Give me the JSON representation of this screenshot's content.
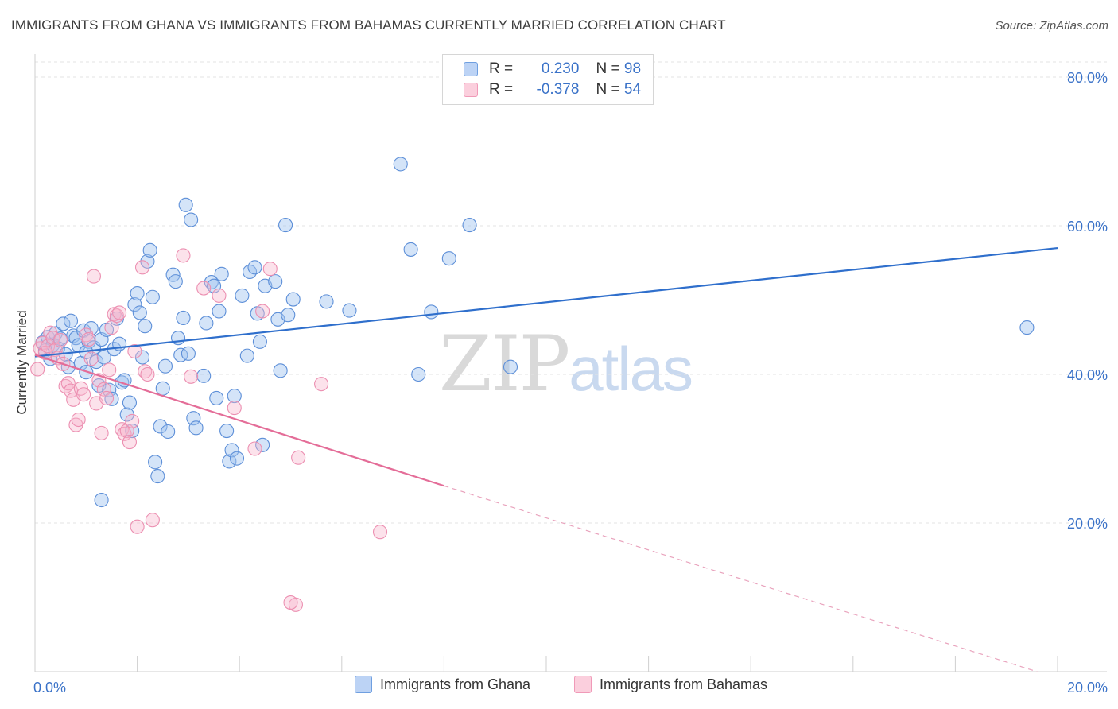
{
  "title": "IMMIGRANTS FROM GHANA VS IMMIGRANTS FROM BAHAMAS CURRENTLY MARRIED CORRELATION CHART",
  "source": "Source: ZipAtlas.com",
  "watermark": {
    "zip": "ZIP",
    "atlas": "atlas"
  },
  "legend": {
    "r_label": "R =",
    "n_label": "N =",
    "rows": [
      {
        "r": "0.230",
        "n": "98"
      },
      {
        "r": "-0.378",
        "n": "54"
      }
    ]
  },
  "chart_data": {
    "type": "scatter",
    "title": "IMMIGRANTS FROM GHANA VS IMMIGRANTS FROM BAHAMAS CURRENTLY MARRIED CORRELATION CHART",
    "xlabel": "",
    "ylabel": "Currently Married",
    "xlim": [
      0,
      20
    ],
    "ylim": [
      0,
      80
    ],
    "x_tick_labels": [
      "0.0%",
      "20.0%"
    ],
    "y_ticks": [
      20,
      40,
      60,
      80
    ],
    "y_tick_labels": [
      "20.0%",
      "40.0%",
      "60.0%",
      "80.0%"
    ],
    "grid": true,
    "legend_position": "top-center",
    "series": [
      {
        "name": "Immigrants from Ghana",
        "color": "#6f9fe0",
        "r": 0.23,
        "n": 98,
        "trend": {
          "x": [
            0,
            20
          ],
          "y": [
            42.4,
            57.0
          ],
          "style": "solid"
        },
        "points": [
          [
            0.15,
            44.3
          ],
          [
            0.2,
            43.2
          ],
          [
            0.25,
            45.0
          ],
          [
            0.3,
            42.1
          ],
          [
            0.35,
            44.0
          ],
          [
            0.4,
            45.5
          ],
          [
            0.45,
            43.5
          ],
          [
            0.5,
            44.8
          ],
          [
            0.55,
            46.8
          ],
          [
            0.6,
            42.7
          ],
          [
            0.65,
            41.0
          ],
          [
            0.7,
            47.2
          ],
          [
            0.75,
            45.2
          ],
          [
            0.8,
            44.9
          ],
          [
            0.85,
            43.9
          ],
          [
            0.9,
            41.5
          ],
          [
            0.95,
            45.9
          ],
          [
            1.0,
            40.3
          ],
          [
            1.05,
            44.4
          ],
          [
            1.1,
            46.2
          ],
          [
            1.15,
            43.6
          ],
          [
            1.2,
            41.7
          ],
          [
            1.25,
            38.5
          ],
          [
            1.3,
            44.7
          ],
          [
            1.35,
            42.3
          ],
          [
            1.4,
            46.0
          ],
          [
            1.45,
            37.9
          ],
          [
            1.5,
            36.7
          ],
          [
            1.55,
            43.4
          ],
          [
            1.6,
            47.5
          ],
          [
            1.65,
            44.1
          ],
          [
            1.7,
            38.9
          ],
          [
            1.75,
            39.2
          ],
          [
            1.8,
            34.6
          ],
          [
            1.85,
            36.2
          ],
          [
            1.9,
            32.4
          ],
          [
            1.95,
            49.4
          ],
          [
            2.0,
            50.9
          ],
          [
            2.05,
            48.3
          ],
          [
            2.1,
            42.3
          ],
          [
            2.15,
            46.5
          ],
          [
            2.2,
            55.2
          ],
          [
            2.25,
            56.7
          ],
          [
            2.3,
            50.4
          ],
          [
            2.35,
            28.2
          ],
          [
            2.4,
            26.3
          ],
          [
            2.45,
            33.0
          ],
          [
            2.5,
            38.1
          ],
          [
            2.55,
            41.1
          ],
          [
            2.6,
            32.3
          ],
          [
            2.7,
            53.4
          ],
          [
            2.75,
            52.5
          ],
          [
            2.8,
            44.9
          ],
          [
            2.85,
            42.6
          ],
          [
            2.9,
            47.6
          ],
          [
            2.95,
            62.8
          ],
          [
            3.0,
            42.8
          ],
          [
            3.05,
            60.8
          ],
          [
            3.1,
            34.1
          ],
          [
            3.15,
            32.8
          ],
          [
            3.3,
            39.8
          ],
          [
            3.35,
            46.9
          ],
          [
            3.45,
            52.4
          ],
          [
            3.5,
            51.9
          ],
          [
            3.55,
            36.8
          ],
          [
            3.6,
            48.5
          ],
          [
            3.65,
            53.5
          ],
          [
            3.75,
            32.4
          ],
          [
            3.8,
            28.3
          ],
          [
            3.85,
            29.8
          ],
          [
            3.9,
            37.1
          ],
          [
            3.95,
            28.7
          ],
          [
            4.05,
            50.6
          ],
          [
            4.15,
            42.5
          ],
          [
            4.2,
            53.8
          ],
          [
            4.3,
            54.4
          ],
          [
            4.35,
            48.2
          ],
          [
            4.4,
            44.4
          ],
          [
            4.45,
            30.5
          ],
          [
            4.5,
            51.9
          ],
          [
            4.7,
            52.5
          ],
          [
            4.75,
            47.4
          ],
          [
            4.8,
            40.5
          ],
          [
            4.9,
            60.1
          ],
          [
            4.95,
            48.0
          ],
          [
            5.05,
            50.1
          ],
          [
            5.7,
            49.8
          ],
          [
            6.15,
            48.6
          ],
          [
            7.15,
            68.3
          ],
          [
            7.35,
            56.8
          ],
          [
            7.5,
            40.0
          ],
          [
            7.75,
            48.4
          ],
          [
            8.1,
            55.6
          ],
          [
            8.5,
            60.1
          ],
          [
            9.3,
            41.0
          ],
          [
            19.4,
            46.3
          ],
          [
            1.3,
            23.1
          ],
          [
            1.0,
            43.0
          ]
        ]
      },
      {
        "name": "Immigrants from Bahamas",
        "color": "#f09ab8",
        "r": -0.378,
        "n": 54,
        "trend": {
          "x": [
            0,
            8.0
          ],
          "y": [
            42.6,
            25.0
          ],
          "style": "solid",
          "extended_to": [
            19.6,
            0
          ],
          "extended_style": "dashed"
        },
        "points": [
          [
            0.05,
            40.7
          ],
          [
            0.1,
            43.5
          ],
          [
            0.15,
            44.2
          ],
          [
            0.2,
            42.9
          ],
          [
            0.25,
            43.8
          ],
          [
            0.3,
            45.6
          ],
          [
            0.35,
            44.9
          ],
          [
            0.4,
            43.3
          ],
          [
            0.45,
            42.2
          ],
          [
            0.5,
            44.6
          ],
          [
            0.55,
            41.4
          ],
          [
            0.6,
            38.4
          ],
          [
            0.65,
            38.8
          ],
          [
            0.7,
            37.8
          ],
          [
            0.75,
            36.6
          ],
          [
            0.8,
            33.2
          ],
          [
            0.85,
            33.9
          ],
          [
            0.9,
            38.1
          ],
          [
            0.95,
            37.3
          ],
          [
            1.0,
            45.3
          ],
          [
            1.05,
            44.7
          ],
          [
            1.1,
            42.1
          ],
          [
            1.15,
            53.2
          ],
          [
            1.2,
            36.1
          ],
          [
            1.25,
            39.2
          ],
          [
            1.3,
            32.1
          ],
          [
            1.35,
            38.0
          ],
          [
            1.4,
            36.8
          ],
          [
            1.45,
            40.6
          ],
          [
            1.5,
            46.3
          ],
          [
            1.55,
            48.1
          ],
          [
            1.6,
            47.9
          ],
          [
            1.65,
            48.3
          ],
          [
            1.7,
            32.6
          ],
          [
            1.75,
            32.0
          ],
          [
            1.8,
            32.4
          ],
          [
            1.85,
            30.9
          ],
          [
            1.9,
            33.7
          ],
          [
            1.95,
            43.1
          ],
          [
            2.0,
            19.5
          ],
          [
            2.1,
            54.4
          ],
          [
            2.15,
            40.4
          ],
          [
            2.2,
            40.0
          ],
          [
            2.3,
            20.4
          ],
          [
            2.9,
            56.0
          ],
          [
            3.05,
            39.7
          ],
          [
            3.3,
            51.6
          ],
          [
            3.6,
            50.6
          ],
          [
            3.9,
            35.5
          ],
          [
            4.3,
            30.0
          ],
          [
            4.45,
            48.5
          ],
          [
            4.6,
            54.2
          ],
          [
            5.1,
            9.0
          ],
          [
            5.15,
            28.8
          ]
        ]
      }
    ],
    "extra_points_bahamas_note": ""
  },
  "extra_bahamas": [
    [
      5.6,
      38.7
    ],
    [
      6.75,
      18.8
    ],
    [
      5.0,
      9.3
    ]
  ],
  "bottom_legend": [
    {
      "label": "Immigrants from Ghana"
    },
    {
      "label": "Immigrants from Bahamas"
    }
  ]
}
